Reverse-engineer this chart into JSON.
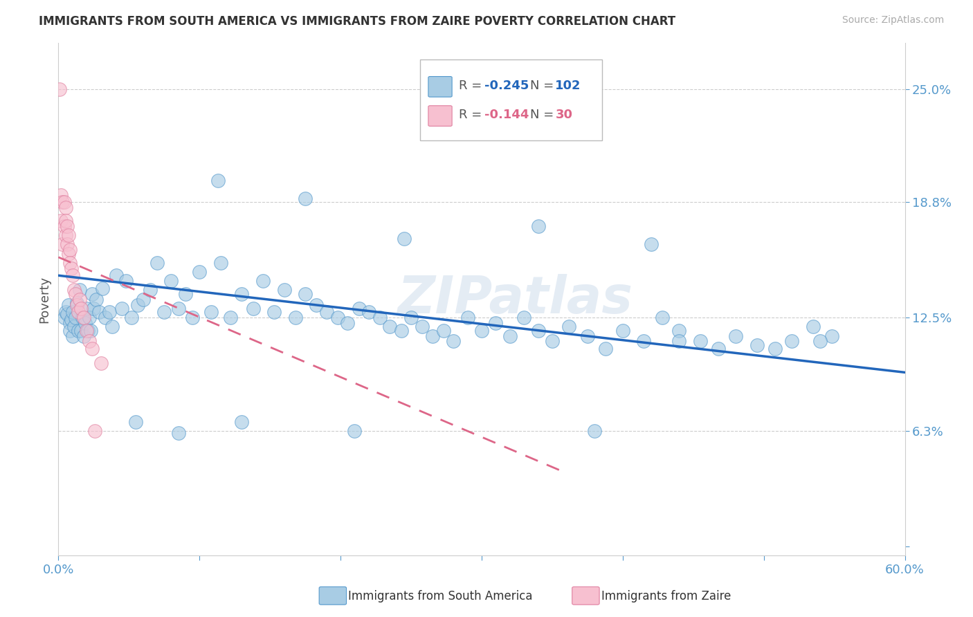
{
  "title": "IMMIGRANTS FROM SOUTH AMERICA VS IMMIGRANTS FROM ZAIRE POVERTY CORRELATION CHART",
  "source": "Source: ZipAtlas.com",
  "ylabel": "Poverty",
  "yticks": [
    0.0,
    0.063,
    0.125,
    0.188,
    0.25
  ],
  "ytick_labels": [
    "",
    "6.3%",
    "12.5%",
    "18.8%",
    "25.0%"
  ],
  "xlim": [
    0.0,
    0.6
  ],
  "ylim": [
    -0.005,
    0.275
  ],
  "blue_R": "-0.245",
  "blue_N": "102",
  "pink_R": "-0.144",
  "pink_N": "30",
  "blue_fill": "#a8cce4",
  "pink_fill": "#f7c0d0",
  "blue_edge": "#5599cc",
  "pink_edge": "#e080a0",
  "blue_line": "#2266bb",
  "pink_line": "#dd6688",
  "tick_color": "#5599cc",
  "legend_label_blue": "Immigrants from South America",
  "legend_label_pink": "Immigrants from Zaire",
  "watermark": "ZIPatlas",
  "blue_trendline_x": [
    0.0,
    0.6
  ],
  "blue_trendline_y": [
    0.148,
    0.095
  ],
  "pink_trendline_x": [
    0.0,
    0.36
  ],
  "pink_trendline_y": [
    0.158,
    0.04
  ],
  "blue_scatter_x": [
    0.004,
    0.005,
    0.006,
    0.007,
    0.008,
    0.008,
    0.009,
    0.01,
    0.01,
    0.011,
    0.012,
    0.013,
    0.014,
    0.015,
    0.016,
    0.017,
    0.018,
    0.019,
    0.02,
    0.021,
    0.022,
    0.023,
    0.024,
    0.025,
    0.027,
    0.029,
    0.031,
    0.033,
    0.036,
    0.038,
    0.041,
    0.045,
    0.048,
    0.052,
    0.056,
    0.06,
    0.065,
    0.07,
    0.075,
    0.08,
    0.085,
    0.09,
    0.095,
    0.1,
    0.108,
    0.115,
    0.122,
    0.13,
    0.138,
    0.145,
    0.153,
    0.16,
    0.168,
    0.175,
    0.183,
    0.19,
    0.198,
    0.205,
    0.213,
    0.22,
    0.228,
    0.235,
    0.243,
    0.25,
    0.258,
    0.265,
    0.273,
    0.28,
    0.29,
    0.3,
    0.31,
    0.32,
    0.33,
    0.34,
    0.35,
    0.362,
    0.375,
    0.388,
    0.4,
    0.415,
    0.428,
    0.44,
    0.455,
    0.468,
    0.48,
    0.495,
    0.508,
    0.52,
    0.535,
    0.548,
    0.113,
    0.175,
    0.245,
    0.34,
    0.42,
    0.54,
    0.055,
    0.085,
    0.13,
    0.21,
    0.38,
    0.44
  ],
  "blue_scatter_y": [
    0.125,
    0.128,
    0.127,
    0.132,
    0.122,
    0.118,
    0.124,
    0.115,
    0.128,
    0.12,
    0.125,
    0.133,
    0.118,
    0.14,
    0.118,
    0.125,
    0.115,
    0.122,
    0.13,
    0.118,
    0.125,
    0.118,
    0.138,
    0.13,
    0.135,
    0.128,
    0.141,
    0.125,
    0.128,
    0.12,
    0.148,
    0.13,
    0.145,
    0.125,
    0.132,
    0.135,
    0.14,
    0.155,
    0.128,
    0.145,
    0.13,
    0.138,
    0.125,
    0.15,
    0.128,
    0.155,
    0.125,
    0.138,
    0.13,
    0.145,
    0.128,
    0.14,
    0.125,
    0.138,
    0.132,
    0.128,
    0.125,
    0.122,
    0.13,
    0.128,
    0.125,
    0.12,
    0.118,
    0.125,
    0.12,
    0.115,
    0.118,
    0.112,
    0.125,
    0.118,
    0.122,
    0.115,
    0.125,
    0.118,
    0.112,
    0.12,
    0.115,
    0.108,
    0.118,
    0.112,
    0.125,
    0.118,
    0.112,
    0.108,
    0.115,
    0.11,
    0.108,
    0.112,
    0.12,
    0.115,
    0.2,
    0.19,
    0.168,
    0.175,
    0.165,
    0.112,
    0.068,
    0.062,
    0.068,
    0.063,
    0.063,
    0.112
  ],
  "pink_scatter_x": [
    0.001,
    0.002,
    0.002,
    0.003,
    0.003,
    0.004,
    0.004,
    0.005,
    0.005,
    0.005,
    0.006,
    0.006,
    0.007,
    0.007,
    0.008,
    0.008,
    0.009,
    0.01,
    0.011,
    0.012,
    0.013,
    0.014,
    0.015,
    0.016,
    0.018,
    0.02,
    0.022,
    0.024,
    0.026,
    0.03
  ],
  "pink_scatter_y": [
    0.25,
    0.192,
    0.178,
    0.188,
    0.165,
    0.188,
    0.175,
    0.185,
    0.178,
    0.17,
    0.175,
    0.165,
    0.17,
    0.16,
    0.162,
    0.155,
    0.152,
    0.148,
    0.14,
    0.138,
    0.132,
    0.128,
    0.135,
    0.13,
    0.125,
    0.118,
    0.112,
    0.108,
    0.063,
    0.1
  ]
}
